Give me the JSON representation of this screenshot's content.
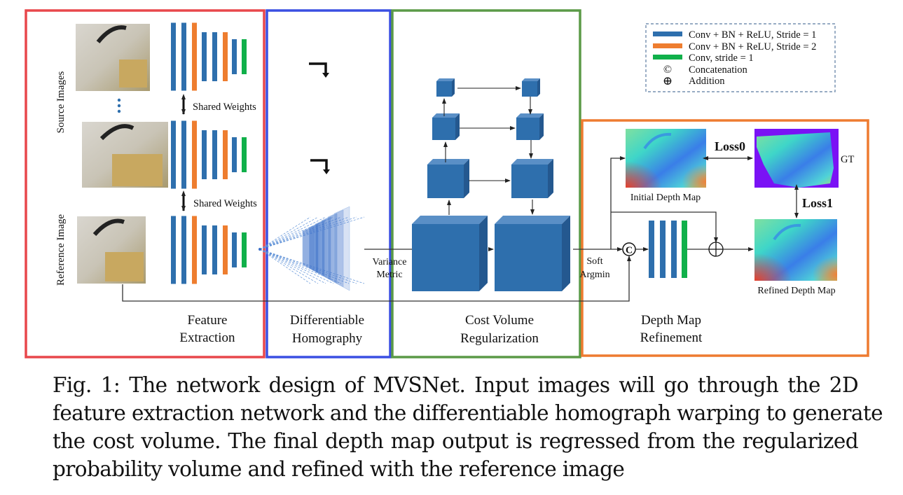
{
  "panels": {
    "feature_extraction": {
      "title_line1": "Feature",
      "title_line2": "Extraction",
      "color": "#e8474b"
    },
    "differentiable_homography": {
      "title_line1": "Differentiable",
      "title_line2": "Homography",
      "color": "#3a4fe2"
    },
    "cost_volume_regularization": {
      "title_line1": "Cost Volume",
      "title_line2": "Regularization",
      "color": "#5b9a47"
    },
    "depth_map_refinement": {
      "title_line1": "Depth Map",
      "title_line2": "Refinement",
      "color": "#ee7b30"
    }
  },
  "labels": {
    "source_images": "Source Images",
    "reference_image": "Reference Image",
    "shared_weights_1": "Shared Weights",
    "shared_weights_2": "Shared Weights",
    "variance_line1": "Variance",
    "variance_line2": "Metric",
    "soft_line1": "Soft",
    "soft_line2": "Argmin",
    "initial_depth_map": "Initial Depth Map",
    "refined_depth_map": "Refined Depth Map",
    "gt": "GT",
    "loss0": "Loss0",
    "loss1": "Loss1"
  },
  "legend": {
    "items": [
      {
        "label": "Conv + BN + ReLU, Stride = 1",
        "color": "#2e6fad"
      },
      {
        "label": "Conv + BN + ReLU, Stride = 2",
        "color": "#ee7d2f"
      },
      {
        "label": "Conv, stride = 1",
        "color": "#10b04a"
      },
      {
        "label": "Concatenation",
        "symbol": "©"
      },
      {
        "label": "Addition",
        "symbol": "⊕"
      }
    ]
  },
  "caption": {
    "lines": [
      "Fig. 1: The network design of MVSNet. Input images will go through the 2D",
      "feature extraction network and the differentiable homograph warping to generate",
      "the cost volume. The final depth map output is regressed from the regularized",
      "probability volume and refined with the reference image"
    ]
  }
}
